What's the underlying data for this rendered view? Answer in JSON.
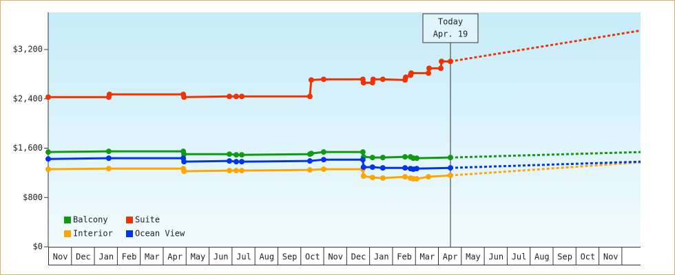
{
  "chart_data": {
    "type": "line",
    "xlim": [
      0,
      25.83
    ],
    "ylim": [
      0,
      3780
    ],
    "yticks": [
      {
        "value": 0,
        "label": "$0"
      },
      {
        "value": 800,
        "label": "$800"
      },
      {
        "value": 1600,
        "label": "$1,600"
      },
      {
        "value": 2400,
        "label": "$2,400"
      },
      {
        "value": 3200,
        "label": "$3,200"
      }
    ],
    "xticks": [
      {
        "value": 0,
        "label": "Nov"
      },
      {
        "value": 1,
        "label": "Dec"
      },
      {
        "value": 2,
        "label": "Jan"
      },
      {
        "value": 3,
        "label": "Feb"
      },
      {
        "value": 4,
        "label": "Mar"
      },
      {
        "value": 5,
        "label": "Apr"
      },
      {
        "value": 6,
        "label": "May"
      },
      {
        "value": 7,
        "label": "Jun"
      },
      {
        "value": 8,
        "label": "Jul"
      },
      {
        "value": 9,
        "label": "Aug"
      },
      {
        "value": 10,
        "label": "Sep"
      },
      {
        "value": 11,
        "label": "Oct"
      },
      {
        "value": 12,
        "label": "Nov"
      },
      {
        "value": 13,
        "label": "Dec"
      },
      {
        "value": 14,
        "label": "Jan"
      },
      {
        "value": 15,
        "label": "Feb"
      },
      {
        "value": 16,
        "label": "Mar"
      },
      {
        "value": 17,
        "label": "Apr"
      },
      {
        "value": 18,
        "label": "May"
      },
      {
        "value": 19,
        "label": "Jun"
      },
      {
        "value": 20,
        "label": "Jul"
      },
      {
        "value": 21,
        "label": "Aug"
      },
      {
        "value": 22,
        "label": "Sep"
      },
      {
        "value": 23,
        "label": "Oct"
      },
      {
        "value": 24,
        "label": "Nov"
      }
    ],
    "today": {
      "x": 17.54,
      "label": [
        "Today",
        "Apr. 19"
      ]
    },
    "series": [
      {
        "name": "Balcony",
        "color": "#119911",
        "x": [
          0,
          2.64,
          5.89,
          5.92,
          7.9,
          8.2,
          8.44,
          11.41,
          11.47,
          12.01,
          13.72,
          13.75,
          14.14,
          14.59,
          15.56,
          15.8,
          15.92,
          16.07,
          17.54
        ],
        "values": [
          1537,
          1548,
          1548,
          1503,
          1503,
          1492,
          1492,
          1503,
          1514,
          1537,
          1537,
          1459,
          1448,
          1448,
          1459,
          1459,
          1437,
          1437,
          1448
        ],
        "projection": {
          "x": [
            17.54,
            25.83
          ],
          "values": [
            1448,
            1537
          ]
        }
      },
      {
        "name": "Suite",
        "color": "#ee3300",
        "x": [
          0,
          2.64,
          2.67,
          5.89,
          5.92,
          7.9,
          8.2,
          8.44,
          11.41,
          11.47,
          12.01,
          13.72,
          13.75,
          14.14,
          14.17,
          14.59,
          15.56,
          15.59,
          15.8,
          15.83,
          16.58,
          16.61,
          17.12,
          17.15,
          17.54
        ],
        "values": [
          2428,
          2428,
          2472,
          2472,
          2428,
          2439,
          2439,
          2439,
          2439,
          2706,
          2717,
          2717,
          2661,
          2661,
          2717,
          2717,
          2706,
          2751,
          2784,
          2817,
          2817,
          2895,
          2895,
          3007,
          3007
        ],
        "projection": {
          "x": [
            17.54,
            25.83
          ],
          "values": [
            3007,
            3508
          ]
        }
      },
      {
        "name": "Interior",
        "color": "#ffa500",
        "x": [
          0,
          2.64,
          5.89,
          5.92,
          7.9,
          8.2,
          8.44,
          11.41,
          12.01,
          13.72,
          13.75,
          14.14,
          14.59,
          15.56,
          15.8,
          15.92,
          16.07,
          16.58,
          17.54
        ],
        "values": [
          1258,
          1269,
          1269,
          1225,
          1236,
          1236,
          1236,
          1247,
          1258,
          1258,
          1147,
          1125,
          1114,
          1136,
          1114,
          1103,
          1103,
          1136,
          1158
        ],
        "projection": {
          "x": [
            17.54,
            25.83
          ],
          "values": [
            1158,
            1370
          ]
        }
      },
      {
        "name": "Ocean View",
        "color": "#0033ee",
        "x": [
          0,
          2.64,
          5.89,
          5.92,
          7.9,
          8.2,
          8.44,
          11.41,
          12.01,
          13.72,
          13.75,
          14.14,
          14.59,
          15.56,
          15.8,
          15.92,
          16.07,
          17.54
        ],
        "values": [
          1425,
          1437,
          1437,
          1381,
          1392,
          1381,
          1381,
          1392,
          1414,
          1414,
          1292,
          1292,
          1280,
          1280,
          1269,
          1258,
          1269,
          1280
        ],
        "projection": {
          "x": [
            17.54,
            25.83
          ],
          "values": [
            1280,
            1381
          ]
        }
      }
    ]
  }
}
